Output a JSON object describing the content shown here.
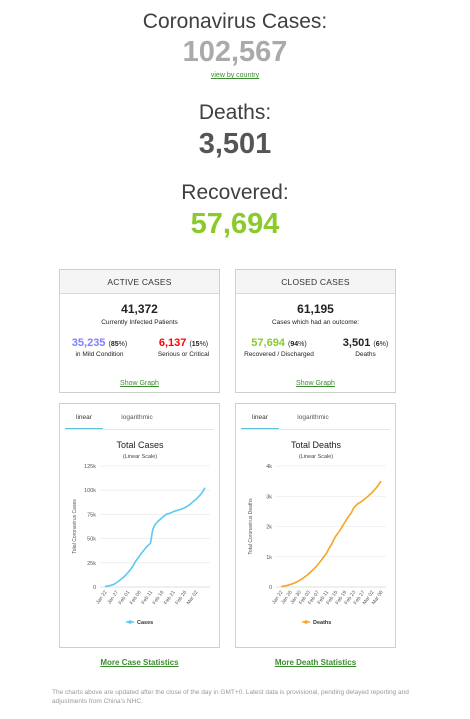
{
  "summary": {
    "cases_label": "Coronavirus Cases:",
    "cases_value": "102,567",
    "view_by_country": "view by country",
    "deaths_label": "Deaths:",
    "deaths_value": "3,501",
    "recovered_label": "Recovered:",
    "recovered_value": "57,694"
  },
  "active_cases": {
    "title": "ACTIVE CASES",
    "total": "41,372",
    "subtitle": "Currently Infected Patients",
    "mild_value": "35,235",
    "mild_pct": "85",
    "mild_label": "in Mild Condition",
    "serious_value": "6,137",
    "serious_pct": "15",
    "serious_label": "Serious or Critical",
    "show_graph": "Show Graph",
    "colors": {
      "mild": "#8080FF",
      "serious": "#FF0000"
    }
  },
  "closed_cases": {
    "title": "CLOSED CASES",
    "total": "61,195",
    "subtitle": "Cases which had an outcome:",
    "recovered_value": "57,694",
    "recovered_pct": "94",
    "recovered_label": "Recovered / Discharged",
    "deaths_value": "3,501",
    "deaths_pct": "6",
    "deaths_label": "Deaths",
    "show_graph": "Show Graph",
    "colors": {
      "recovered": "#8ACA2B",
      "deaths": "#222222"
    }
  },
  "tabs": {
    "linear": "linear",
    "log": "logarithmic"
  },
  "chart_data": [
    {
      "type": "line",
      "title": "Total Cases",
      "subtitle": "(Linear Scale)",
      "ylabel": "Total Coronavirus Cases",
      "ylim": [
        0,
        125000
      ],
      "yticks": [
        0,
        25000,
        50000,
        75000,
        100000,
        125000
      ],
      "ytick_labels": [
        "0",
        "25k",
        "50k",
        "75k",
        "100k",
        "125k"
      ],
      "xtick_labels": [
        "Jan 22",
        "Jan 27",
        "Feb 01",
        "Feb 06",
        "Feb 11",
        "Feb 16",
        "Feb 21",
        "Feb 26",
        "Mar 02"
      ],
      "color": "#5BC8F5",
      "legend": "Cases",
      "legend_position": "bottom",
      "x": [
        "Jan 22",
        "Jan 23",
        "Jan 24",
        "Jan 25",
        "Jan 26",
        "Jan 27",
        "Jan 28",
        "Jan 29",
        "Jan 30",
        "Jan 31",
        "Feb 01",
        "Feb 02",
        "Feb 03",
        "Feb 04",
        "Feb 05",
        "Feb 06",
        "Feb 07",
        "Feb 08",
        "Feb 09",
        "Feb 10",
        "Feb 11",
        "Feb 12",
        "Feb 13",
        "Feb 14",
        "Feb 15",
        "Feb 16",
        "Feb 17",
        "Feb 18",
        "Feb 19",
        "Feb 20",
        "Feb 21",
        "Feb 22",
        "Feb 23",
        "Feb 24",
        "Feb 25",
        "Feb 26",
        "Feb 27",
        "Feb 28",
        "Feb 29",
        "Mar 01",
        "Mar 02",
        "Mar 03",
        "Mar 04",
        "Mar 05",
        "Mar 06"
      ],
      "values": [
        580,
        845,
        1317,
        2015,
        2800,
        4581,
        6058,
        7813,
        9823,
        11950,
        14553,
        17391,
        20630,
        24545,
        28266,
        31439,
        34876,
        37552,
        40553,
        43099,
        45134,
        59287,
        64438,
        67100,
        69197,
        71329,
        73332,
        75184,
        75700,
        76677,
        77673,
        78651,
        79205,
        80087,
        80828,
        81820,
        83112,
        84615,
        86604,
        88585,
        90443,
        93016,
        95314,
        98425,
        102567
      ]
    },
    {
      "type": "line",
      "title": "Total Deaths",
      "subtitle": "(Linear Scale)",
      "ylabel": "Total Coronavirus Deaths",
      "ylim": [
        0,
        4000
      ],
      "yticks": [
        0,
        1000,
        2000,
        3000,
        4000
      ],
      "ytick_labels": [
        "0",
        "1k",
        "2k",
        "3k",
        "4k"
      ],
      "xtick_labels": [
        "Jan 22",
        "Jan 26",
        "Jan 30",
        "Feb 03",
        "Feb 07",
        "Feb 11",
        "Feb 15",
        "Feb 19",
        "Feb 23",
        "Feb 27",
        "Mar 02",
        "Mar 06"
      ],
      "color": "#F5A623",
      "legend": "Deaths",
      "legend_position": "bottom",
      "x": [
        "Jan 22",
        "Jan 23",
        "Jan 24",
        "Jan 25",
        "Jan 26",
        "Jan 27",
        "Jan 28",
        "Jan 29",
        "Jan 30",
        "Jan 31",
        "Feb 01",
        "Feb 02",
        "Feb 03",
        "Feb 04",
        "Feb 05",
        "Feb 06",
        "Feb 07",
        "Feb 08",
        "Feb 09",
        "Feb 10",
        "Feb 11",
        "Feb 12",
        "Feb 13",
        "Feb 14",
        "Feb 15",
        "Feb 16",
        "Feb 17",
        "Feb 18",
        "Feb 19",
        "Feb 20",
        "Feb 21",
        "Feb 22",
        "Feb 23",
        "Feb 24",
        "Feb 25",
        "Feb 26",
        "Feb 27",
        "Feb 28",
        "Feb 29",
        "Mar 01",
        "Mar 02",
        "Mar 03",
        "Mar 04",
        "Mar 05",
        "Mar 06"
      ],
      "values": [
        17,
        25,
        41,
        56,
        80,
        106,
        132,
        170,
        213,
        259,
        304,
        362,
        426,
        492,
        565,
        638,
        724,
        813,
        910,
        1018,
        1115,
        1261,
        1383,
        1526,
        1669,
        1775,
        1873,
        2009,
        2126,
        2247,
        2360,
        2460,
        2618,
        2699,
        2763,
        2800,
        2858,
        2923,
        2977,
        3050,
        3117,
        3202,
        3285,
        3387,
        3501
      ]
    }
  ],
  "footer": {
    "more_case_stats": "More Case Statistics",
    "more_death_stats": "More Death Statistics",
    "note": "The charts above are updated after the close of the day in GMT+0. Latest data is provisional, pending delayed reporting and adjustments from China's NHC."
  }
}
